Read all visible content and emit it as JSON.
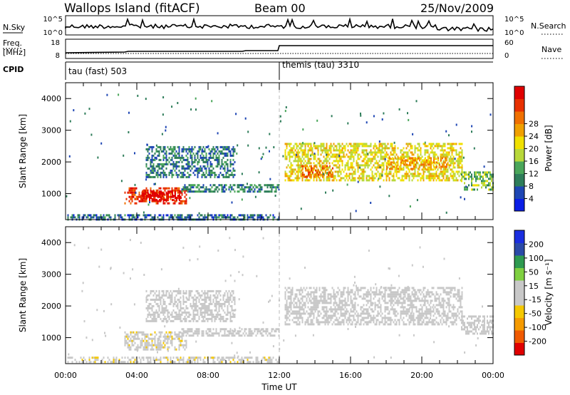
{
  "header": {
    "station": "Wallops Island (fitACF)",
    "beam": "Beam 00",
    "date": "25/Nov/2009"
  },
  "left_labels": {
    "nsky": "N.Sky",
    "freq_line1": "Freq.",
    "freq_line2": "[MHz]",
    "cpid": "CPID"
  },
  "right_labels": {
    "nsearch": "N.Search",
    "nave": "Nave"
  },
  "panel_ticks": {
    "nsky_left": [
      "10^5",
      "10^0"
    ],
    "nsky_right": [
      "10^5",
      "10^0"
    ],
    "freq_left": [
      "18",
      "8"
    ],
    "freq_right": [
      "60",
      "0"
    ]
  },
  "cpid_modes": [
    "tau (fast) 503",
    "themis (tau) 3310"
  ],
  "x_axis": {
    "label": "Time UT",
    "ticks": [
      "00:00",
      "04:00",
      "08:00",
      "12:00",
      "16:00",
      "20:00",
      "00:00"
    ]
  },
  "colors": {
    "power": [
      "#0a1ee6",
      "#1e46b4",
      "#2e7d5a",
      "#4aa65a",
      "#b8d83a",
      "#f0e000",
      "#f0a000",
      "#f07000",
      "#e83000",
      "#e00000"
    ],
    "velocity": [
      "#e00000",
      "#f05a00",
      "#f59a00",
      "#f5c800",
      "#c8c8c8",
      "#c8c8c8",
      "#7fd040",
      "#2e9a50",
      "#2b4aa8",
      "#1a2ee0"
    ]
  },
  "chart_data": [
    {
      "type": "heatmap",
      "name": "power",
      "title": "",
      "xlabel": "",
      "ylabel": "Slant Range [km]",
      "xlim": [
        0,
        24
      ],
      "ylim": [
        180,
        4500
      ],
      "yticks": [
        "1000",
        "2000",
        "3000",
        "4000"
      ],
      "colorbar_label": "Power [dB]",
      "colorbar_ticks": [
        "4",
        "8",
        "12",
        "16",
        "20",
        "24",
        "28"
      ],
      "colorbar_range": [
        0,
        30
      ],
      "approx_echo_regions": [
        {
          "t_start": 0.1,
          "t_end": 12.0,
          "range_start": 200,
          "range_end": 350,
          "value": 6
        },
        {
          "t_start": 3.3,
          "t_end": 6.8,
          "range_start": 700,
          "range_end": 1200,
          "value": 26
        },
        {
          "t_start": 4.2,
          "t_end": 6.5,
          "range_start": 820,
          "range_end": 1100,
          "value": 30
        },
        {
          "t_start": 6.5,
          "t_end": 12.0,
          "range_start": 1050,
          "range_end": 1300,
          "value": 8
        },
        {
          "t_start": 4.5,
          "t_end": 9.5,
          "range_start": 1500,
          "range_end": 2500,
          "value": 7
        },
        {
          "t_start": 12.3,
          "t_end": 22.3,
          "range_start": 1400,
          "range_end": 2600,
          "value": 16
        },
        {
          "t_start": 13.2,
          "t_end": 15.0,
          "range_start": 1500,
          "range_end": 1900,
          "value": 22
        },
        {
          "t_start": 18.0,
          "t_end": 21.5,
          "range_start": 1750,
          "range_end": 2150,
          "value": 20
        },
        {
          "t_start": 22.2,
          "t_end": 24.0,
          "range_start": 1100,
          "range_end": 1700,
          "value": 12
        }
      ]
    },
    {
      "type": "heatmap",
      "name": "velocity",
      "title": "",
      "xlabel": "Time UT",
      "ylabel": "Slant Range [km]",
      "xlim": [
        0,
        24
      ],
      "ylim": [
        180,
        4500
      ],
      "yticks": [
        "1000",
        "2000",
        "3000",
        "4000"
      ],
      "colorbar_label": "Velocity [m s⁻¹]",
      "colorbar_ticks": [
        "200",
        "100",
        "50",
        "15",
        "-15",
        "-50",
        "-100",
        "-200"
      ],
      "colorbar_range": [
        -250,
        250
      ],
      "approx_echo_regions": [
        {
          "t_start": 0.1,
          "t_end": 12.0,
          "range_start": 200,
          "range_end": 400,
          "value": -40
        },
        {
          "t_start": 3.3,
          "t_end": 6.8,
          "range_start": 650,
          "range_end": 1200,
          "value": -40
        },
        {
          "t_start": 6.5,
          "t_end": 12.0,
          "range_start": 1050,
          "range_end": 1300,
          "value": 0
        },
        {
          "t_start": 4.5,
          "t_end": 9.5,
          "range_start": 1500,
          "range_end": 2500,
          "value": 0
        },
        {
          "t_start": 12.3,
          "t_end": 22.3,
          "range_start": 1400,
          "range_end": 2600,
          "value": 0
        },
        {
          "t_start": 22.2,
          "t_end": 24.0,
          "range_start": 1100,
          "range_end": 1700,
          "value": 20
        }
      ]
    }
  ]
}
